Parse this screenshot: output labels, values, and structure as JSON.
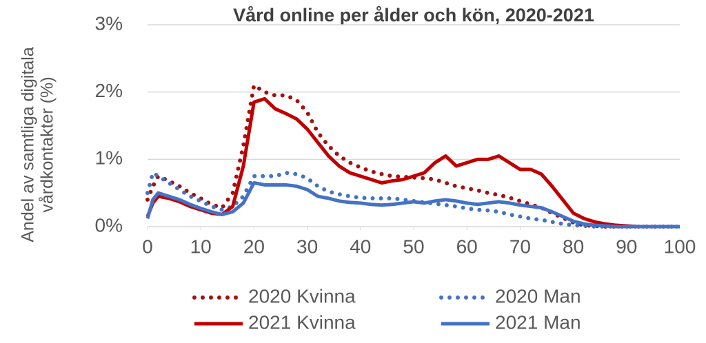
{
  "chart_data": {
    "type": "line",
    "title": "Vård online per ålder och kön, 2020-2021",
    "y_label": [
      "Andel av samtliga digitala",
      "vårdkontakter (%)"
    ],
    "x": [
      0,
      1,
      2,
      4,
      6,
      8,
      10,
      12,
      14,
      16,
      18,
      20,
      22,
      24,
      26,
      28,
      30,
      32,
      34,
      36,
      38,
      40,
      42,
      44,
      46,
      48,
      50,
      52,
      54,
      56,
      58,
      60,
      62,
      64,
      66,
      68,
      70,
      72,
      74,
      76,
      78,
      80,
      82,
      84,
      86,
      88,
      90,
      92,
      94,
      96,
      98,
      100
    ],
    "series": [
      {
        "name": "2020 Kvinna",
        "color": "#a50f0f",
        "style": "dotted",
        "values": [
          0.4,
          0.6,
          0.75,
          0.68,
          0.6,
          0.5,
          0.42,
          0.33,
          0.28,
          0.5,
          1.2,
          2.1,
          2.0,
          1.95,
          1.95,
          1.88,
          1.7,
          1.4,
          1.2,
          1.05,
          0.95,
          0.88,
          0.82,
          0.78,
          0.75,
          0.74,
          0.73,
          0.72,
          0.7,
          0.65,
          0.6,
          0.57,
          0.54,
          0.5,
          0.47,
          0.43,
          0.38,
          0.33,
          0.28,
          0.2,
          0.13,
          0.06,
          0.02,
          0.01,
          0,
          0,
          0,
          0,
          0,
          0,
          0,
          0
        ]
      },
      {
        "name": "2020 Man",
        "color": "#4472c4",
        "style": "dotted",
        "values": [
          0.5,
          0.8,
          0.75,
          0.65,
          0.55,
          0.45,
          0.38,
          0.3,
          0.25,
          0.3,
          0.45,
          0.75,
          0.75,
          0.75,
          0.8,
          0.78,
          0.72,
          0.6,
          0.52,
          0.48,
          0.45,
          0.43,
          0.42,
          0.42,
          0.42,
          0.4,
          0.38,
          0.36,
          0.34,
          0.32,
          0.3,
          0.27,
          0.25,
          0.24,
          0.22,
          0.18,
          0.15,
          0.12,
          0.1,
          0.07,
          0.04,
          0.02,
          0.01,
          0,
          0,
          0,
          0,
          0,
          0,
          0,
          0,
          0
        ]
      },
      {
        "name": "2021 Kvinna",
        "color": "#c00000",
        "style": "solid",
        "values": [
          0.15,
          0.35,
          0.45,
          0.42,
          0.37,
          0.3,
          0.25,
          0.2,
          0.18,
          0.3,
          0.9,
          1.85,
          1.9,
          1.75,
          1.68,
          1.6,
          1.45,
          1.25,
          1.05,
          0.9,
          0.8,
          0.75,
          0.7,
          0.65,
          0.68,
          0.7,
          0.75,
          0.8,
          0.95,
          1.05,
          0.9,
          0.95,
          1.0,
          1.0,
          1.05,
          0.95,
          0.85,
          0.85,
          0.78,
          0.6,
          0.4,
          0.2,
          0.12,
          0.07,
          0.04,
          0.02,
          0.01,
          0,
          0,
          0,
          0,
          0
        ]
      },
      {
        "name": "2021 Man",
        "color": "#4472c4",
        "style": "solid",
        "values": [
          0.12,
          0.4,
          0.5,
          0.45,
          0.4,
          0.33,
          0.27,
          0.22,
          0.18,
          0.22,
          0.35,
          0.65,
          0.62,
          0.62,
          0.62,
          0.6,
          0.55,
          0.45,
          0.42,
          0.38,
          0.36,
          0.35,
          0.33,
          0.32,
          0.33,
          0.35,
          0.37,
          0.35,
          0.38,
          0.4,
          0.38,
          0.35,
          0.33,
          0.35,
          0.37,
          0.35,
          0.32,
          0.3,
          0.28,
          0.22,
          0.15,
          0.08,
          0.04,
          0.02,
          0.01,
          0,
          0,
          0,
          0,
          0,
          0,
          0
        ]
      }
    ],
    "xlim": [
      0,
      100
    ],
    "xticks": [
      0,
      10,
      20,
      30,
      40,
      50,
      60,
      70,
      80,
      90,
      100
    ],
    "ylim": [
      0,
      3
    ],
    "yticks": [
      {
        "value": 0,
        "label": "0%"
      },
      {
        "value": 1,
        "label": "1%"
      },
      {
        "value": 2,
        "label": "2%"
      },
      {
        "value": 3,
        "label": "3%"
      }
    ],
    "grid": true,
    "legend": "bottom"
  }
}
